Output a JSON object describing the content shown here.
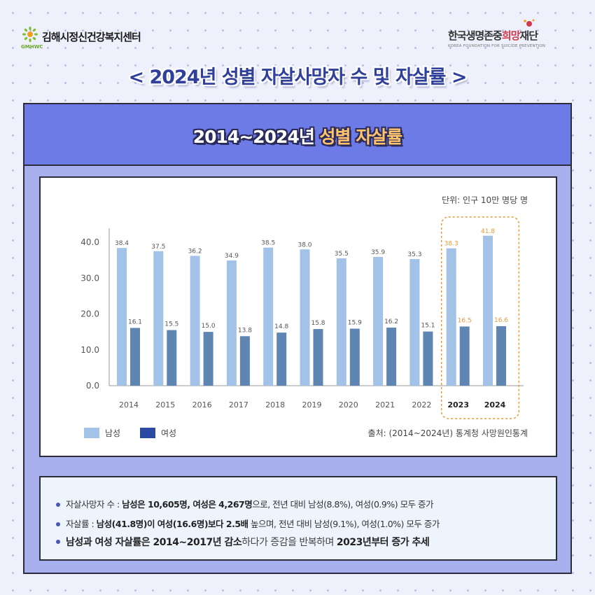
{
  "header": {
    "left_logo": {
      "name": "김해시정신건강복지센터",
      "sub": "GMHWC",
      "icon": "sunburst-logo-icon",
      "color": "#6aa82a"
    },
    "right_logo": {
      "name_part1": "한국생명존중",
      "name_part2": "희망",
      "name_part3": "재단",
      "sub": "KOREA FOUNDATION FOR SUICIDE PREVENTION",
      "icon": "heart-dot-logo-icon",
      "color": "#d2384b"
    },
    "title": "< 2024년 성별 자살사망자 수 및 자살률 >"
  },
  "panel": {
    "title_part1": "2014~2024년 ",
    "title_part2": "성별 자살률",
    "header_color": "#6c7be5",
    "body_color": "#a7b0ec"
  },
  "chart_data": {
    "type": "bar",
    "title": "",
    "unit_label": "단위: 인구 10만 명당 명",
    "categories": [
      "2014",
      "2015",
      "2016",
      "2017",
      "2018",
      "2019",
      "2020",
      "2021",
      "2022",
      "2023",
      "2024"
    ],
    "series": [
      {
        "name": "남성",
        "values": [
          38.4,
          37.5,
          36.2,
          34.9,
          38.5,
          38.0,
          35.5,
          35.9,
          35.3,
          38.3,
          41.8
        ],
        "color": "#a3c2e8"
      },
      {
        "name": "여성",
        "values": [
          16.1,
          15.5,
          15.0,
          13.8,
          14.8,
          15.8,
          15.9,
          16.2,
          15.1,
          16.5,
          16.6
        ],
        "color": "#5f85b3"
      }
    ],
    "legend_colors": [
      "#a3c2e8",
      "#2a4aa3"
    ],
    "y_ticks": [
      "0.0",
      "10.0",
      "20.0",
      "30.0",
      "40.0"
    ],
    "ylim": [
      0,
      45
    ],
    "grid": false,
    "legend_position": "bottom-left",
    "highlight_categories": [
      "2023",
      "2024"
    ],
    "highlight_color": "#e79a3c",
    "source": "출처: (2014~2024년) 통계청 사망원인통계"
  },
  "notes": [
    {
      "prefix": "자살사망자 수 : ",
      "bold": "남성은 10,605명, 여성은 4,267명",
      "suffix": "으로, 전년 대비 남성(8.8%), 여성(0.9%) 모두 증가"
    },
    {
      "prefix": "자살률 : ",
      "bold": "남성(41.8명)이 여성(16.6명)보다 2.5배",
      "suffix": " 높으며, 전년 대비 남성(9.1%), 여성(1.0%) 모두 증가"
    },
    {
      "p1": "남성과 여성 자살률은 2014~2017년 감소",
      "p2": "하다가 증감을 반복하며 ",
      "p3": "2023년부터 증가 추세"
    }
  ]
}
